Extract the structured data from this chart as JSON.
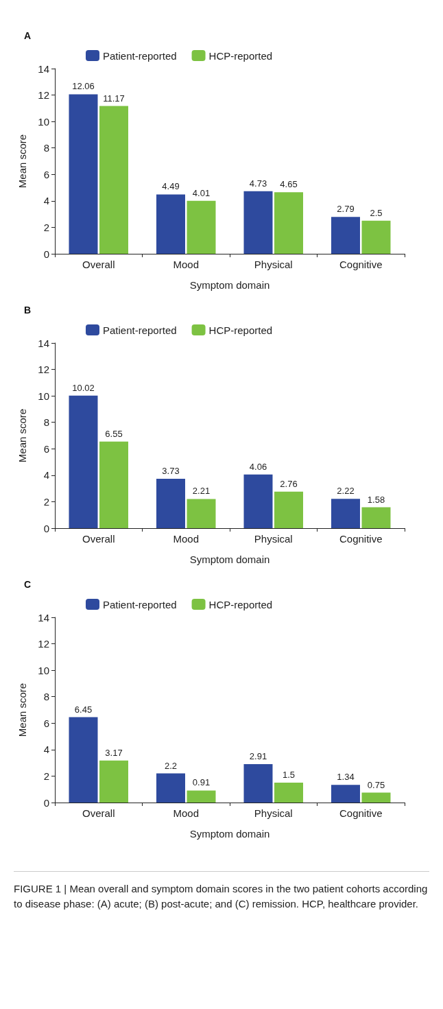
{
  "chart_data": [
    {
      "type": "bar",
      "title": "A",
      "categories": [
        "Overall",
        "Mood",
        "Physical",
        "Cognitive"
      ],
      "xlabel": "Symptom domain",
      "ylabel": "Mean score",
      "ylim": [
        0,
        14
      ],
      "yticks": [
        0,
        2,
        4,
        6,
        8,
        10,
        12,
        14
      ],
      "grid": false,
      "legend": "top left",
      "data_labels": true,
      "series": [
        {
          "name": "Patient-reported",
          "color": "#2e4a9e",
          "values": [
            12.06,
            4.49,
            4.73,
            2.79
          ]
        },
        {
          "name": "HCP-reported",
          "color": "#7dc242",
          "values": [
            11.17,
            4.01,
            4.65,
            2.5
          ]
        }
      ]
    },
    {
      "type": "bar",
      "title": "B",
      "categories": [
        "Overall",
        "Mood",
        "Physical",
        "Cognitive"
      ],
      "xlabel": "Symptom domain",
      "ylabel": "Mean score",
      "ylim": [
        0,
        14
      ],
      "yticks": [
        0,
        2,
        4,
        6,
        8,
        10,
        12,
        14
      ],
      "grid": false,
      "legend": "top left",
      "data_labels": true,
      "series": [
        {
          "name": "Patient-reported",
          "color": "#2e4a9e",
          "values": [
            10.02,
            3.73,
            4.06,
            2.22
          ]
        },
        {
          "name": "HCP-reported",
          "color": "#7dc242",
          "values": [
            6.55,
            2.21,
            2.76,
            1.58
          ]
        }
      ]
    },
    {
      "type": "bar",
      "title": "C",
      "categories": [
        "Overall",
        "Mood",
        "Physical",
        "Cognitive"
      ],
      "xlabel": "Symptom domain",
      "ylabel": "Mean score",
      "ylim": [
        0,
        14
      ],
      "yticks": [
        0,
        2,
        4,
        6,
        8,
        10,
        12,
        14
      ],
      "grid": false,
      "legend": "top left",
      "data_labels": true,
      "series": [
        {
          "name": "Patient-reported",
          "color": "#2e4a9e",
          "values": [
            6.45,
            2.2,
            2.91,
            1.34
          ]
        },
        {
          "name": "HCP-reported",
          "color": "#7dc242",
          "values": [
            3.17,
            0.91,
            1.5,
            0.75
          ]
        }
      ],
      "annotations": [
        "FIGURE 1 | Mean overall and symptom domain scores in the two patient cohorts according to disease phase: (A) acute; (B) post-acute; and (C) remission. HCP, healthcare provider."
      ]
    }
  ]
}
